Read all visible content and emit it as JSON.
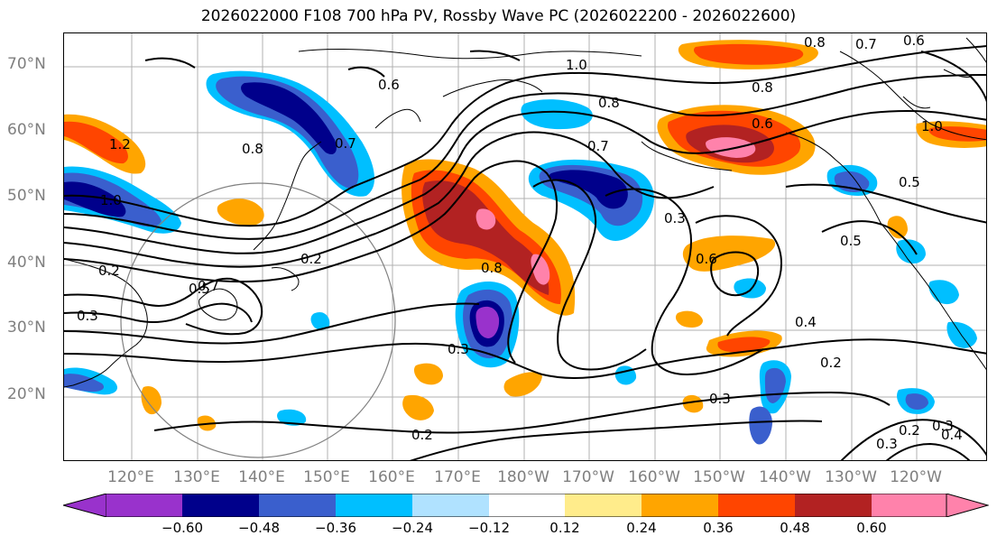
{
  "title": "2026022000 F108 700 hPa PV, Rossby Wave PC (2026022200 - 2026022600)",
  "lat_labels": [
    "70°N",
    "60°N",
    "50°N",
    "40°N",
    "30°N",
    "20°N"
  ],
  "lon_labels": [
    "120°E",
    "130°E",
    "140°E",
    "150°E",
    "160°E",
    "170°E",
    "180°W",
    "170°W",
    "160°W",
    "150°W",
    "140°W",
    "130°W",
    "120°W"
  ],
  "contour_labels": [
    "0.8",
    "0.7",
    "0.6",
    "1.0",
    "0.6",
    "0.8",
    "0.8",
    "0.6",
    "1.2",
    "0.8",
    "0.7",
    "1.0",
    "1.0",
    "0.7",
    "0.3",
    "0.5",
    "0.5",
    "0.2",
    "0.2",
    "0.3",
    "0.5",
    "0.8",
    "0.6",
    "0.3",
    "0.4",
    "0.2",
    "0.3",
    "0.2",
    "0.3",
    "0.2",
    "0.3",
    "0.4",
    "0.7"
  ],
  "colorbar": {
    "ticks": [
      "−0.60",
      "−0.48",
      "−0.36",
      "−0.24",
      "−0.12",
      "0.12",
      "0.24",
      "0.36",
      "0.48",
      "0.60"
    ],
    "colors": [
      "#9932cc",
      "#00008b",
      "#3a5fcd",
      "#00bfff",
      "#b0e2ff",
      "#ffffff",
      "#ffec8b",
      "#ffa500",
      "#ff4500",
      "#b22222",
      "#ff82ab"
    ]
  }
}
